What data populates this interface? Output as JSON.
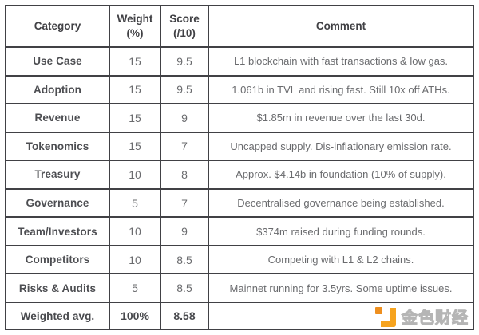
{
  "chart_data": {
    "type": "table",
    "title": "",
    "columns": [
      "Category",
      "Weight (%)",
      "Score (/10)",
      "Comment"
    ],
    "rows": [
      {
        "category": "Use Case",
        "weight": "15",
        "score": "9.5",
        "comment": "L1 blockchain with fast transactions & low gas."
      },
      {
        "category": "Adoption",
        "weight": "15",
        "score": "9.5",
        "comment": "1.061b in TVL and rising fast. Still 10x off ATHs."
      },
      {
        "category": "Revenue",
        "weight": "15",
        "score": "9",
        "comment": "$1.85m in revenue over the last 30d."
      },
      {
        "category": "Tokenomics",
        "weight": "15",
        "score": "7",
        "comment": "Uncapped supply. Dis-inflationary emission rate."
      },
      {
        "category": "Treasury",
        "weight": "10",
        "score": "8",
        "comment": "Approx. $4.14b in foundation (10% of supply)."
      },
      {
        "category": "Governance",
        "weight": "5",
        "score": "7",
        "comment": "Decentralised governance being established."
      },
      {
        "category": "Team/Investors",
        "weight": "10",
        "score": "9",
        "comment": "$374m raised during funding rounds."
      },
      {
        "category": "Competitors",
        "weight": "10",
        "score": "8.5",
        "comment": "Competing with L1 & L2 chains."
      },
      {
        "category": "Risks & Audits",
        "weight": "5",
        "score": "8.5",
        "comment": "Mainnet running for 3.5yrs. Some uptime issues."
      }
    ],
    "footer": {
      "category": "Weighted avg.",
      "weight": "100%",
      "score": "8.58",
      "comment": ""
    }
  },
  "header": {
    "category": "Category",
    "weight_top": "Weight",
    "weight_bottom": "(%)",
    "score_top": "Score",
    "score_bottom": "(/10)",
    "comment": "Comment"
  },
  "watermark": {
    "text": "金色财经",
    "logo_color": "#f6a31e",
    "logo_dot_color": "#ee8f1f"
  }
}
